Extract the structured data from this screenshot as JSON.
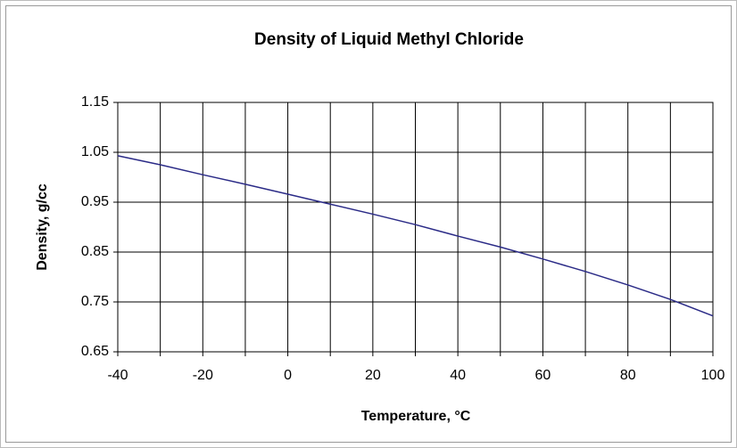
{
  "chart_data": {
    "type": "line",
    "title": "Density of Liquid Methyl Chloride",
    "x_label": "Temperature, °C",
    "y_label": "Density, g/cc",
    "x": [
      -40,
      -30,
      -20,
      -10,
      0,
      10,
      20,
      30,
      40,
      50,
      60,
      70,
      80,
      90,
      100
    ],
    "series": [
      {
        "color": "#2b2b87",
        "values": [
          1.043,
          1.025,
          1.005,
          0.986,
          0.966,
          0.946,
          0.926,
          0.905,
          0.882,
          0.86,
          0.836,
          0.811,
          0.784,
          0.755,
          0.722
        ]
      }
    ],
    "xlim": [
      -40,
      100
    ],
    "xticks": [
      -40,
      -20,
      0,
      20,
      40,
      60,
      80,
      100
    ],
    "x_minor_ticks": [
      -30,
      -10,
      10,
      30,
      50,
      70,
      90
    ],
    "ylim": [
      0.65,
      1.15
    ],
    "yticks": [
      0.65,
      0.75,
      0.85,
      0.95,
      1.05,
      1.15
    ],
    "grid": true
  }
}
